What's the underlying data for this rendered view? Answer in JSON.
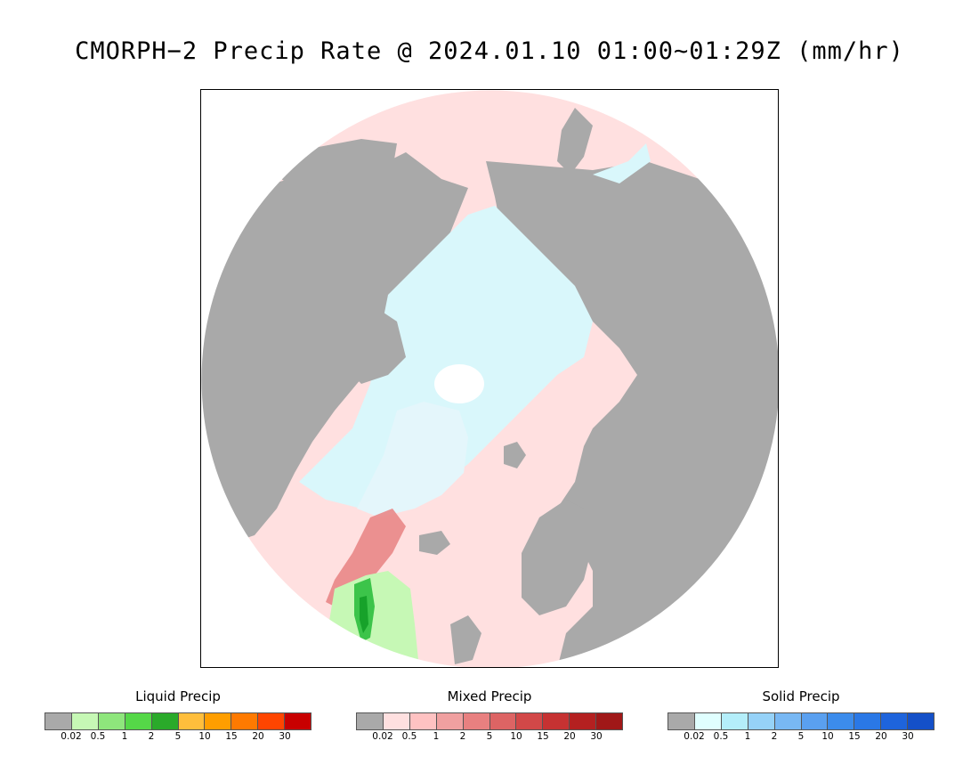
{
  "title": "CMORPH−2 Precip Rate @ 2024.01.10 01:00~01:29Z (mm/hr)",
  "map": {
    "projection": "north-polar-stereographic",
    "colors": {
      "land": "#a9a9a9",
      "ocean_trace": "#ffe0e0",
      "snow_light": "#d9f7fb",
      "pole_hole": "#ffffff",
      "coast": "#000000",
      "rain_light": "#c6f8b5",
      "rain_moderate": "#3cc44a",
      "rain_heavy": "#17a22a",
      "mixed_band": "#e98787"
    }
  },
  "legends": [
    {
      "title": "Liquid Precip",
      "colors": [
        "#a9a9a9",
        "#c6f8b5",
        "#8ee67c",
        "#55d848",
        "#2aaa2a",
        "#ffbe3c",
        "#ff9e00",
        "#ff7a00",
        "#ff4500",
        "#c80000"
      ],
      "ticks": [
        "0.02",
        "0.5",
        "1",
        "2",
        "5",
        "10",
        "15",
        "20",
        "30"
      ]
    },
    {
      "title": "Mixed Precip",
      "colors": [
        "#a9a9a9",
        "#ffe0e0",
        "#ffc2c2",
        "#f0a0a0",
        "#e88080",
        "#dd6464",
        "#d24848",
        "#c63232",
        "#b42020",
        "#a01818"
      ],
      "ticks": [
        "0.02",
        "0.5",
        "1",
        "2",
        "5",
        "10",
        "15",
        "20",
        "30"
      ]
    },
    {
      "title": "Solid Precip",
      "colors": [
        "#a9a9a9",
        "#e0ffff",
        "#b4eefa",
        "#96d2f8",
        "#78b8f4",
        "#5aa0f0",
        "#3c8cec",
        "#2a78e6",
        "#1e64dc",
        "#1450c8"
      ],
      "ticks": [
        "0.02",
        "0.5",
        "1",
        "2",
        "5",
        "10",
        "15",
        "20",
        "30"
      ]
    }
  ]
}
